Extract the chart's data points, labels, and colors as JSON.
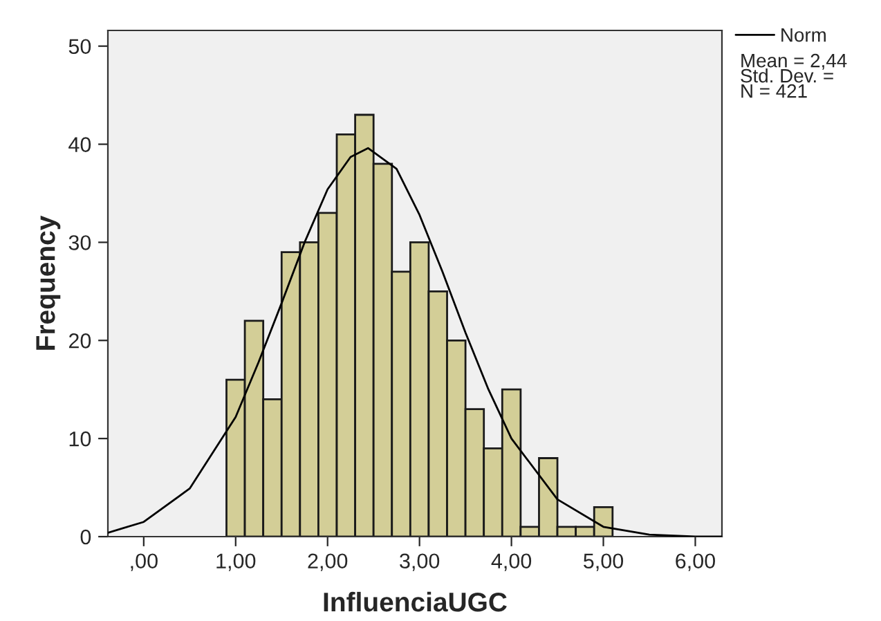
{
  "chart_data": {
    "type": "histogram",
    "xlabel": "InfluenciaUGC",
    "ylabel": "Frequency",
    "bins": [
      0.9,
      1.1,
      1.3,
      1.5,
      1.7,
      1.9,
      2.1,
      2.3,
      2.5,
      2.7,
      2.9,
      3.1,
      3.3,
      3.5,
      3.7,
      3.9,
      4.1,
      4.3,
      4.5,
      4.7,
      4.9,
      5.1
    ],
    "values": [
      16,
      22,
      14,
      29,
      30,
      33,
      41,
      43,
      38,
      27,
      30,
      25,
      20,
      13,
      9,
      15,
      1,
      8,
      1,
      1,
      3
    ],
    "color": "#d3ce97",
    "series": [
      {
        "name": "Norm",
        "type": "line",
        "color": "#000000",
        "x": [
          -0.39,
          0,
          0.5,
          1.0,
          1.25,
          1.5,
          1.75,
          2.0,
          2.25,
          2.44,
          2.75,
          3.0,
          3.25,
          3.5,
          3.75,
          4.0,
          4.5,
          5.0,
          5.5,
          6.0,
          6.29
        ],
        "values": [
          0.4,
          1.5,
          4.9,
          12.2,
          17.8,
          23.8,
          30.0,
          35.4,
          38.7,
          39.6,
          37.5,
          32.8,
          27.0,
          20.8,
          15.0,
          10.0,
          3.8,
          1.0,
          0.2,
          0.0,
          0.0
        ]
      }
    ],
    "annotations": [
      "Mean = 2,44",
      "Std. Dev. =",
      "N = 421"
    ],
    "xlim": [
      -0.39,
      6.29
    ],
    "ylim": [
      0,
      51.6
    ],
    "xticks": [
      {
        "value": 0,
        "label": ",00"
      },
      {
        "value": 1,
        "label": "1,00"
      },
      {
        "value": 2,
        "label": "2,00"
      },
      {
        "value": 3,
        "label": "3,00"
      },
      {
        "value": 4,
        "label": "4,00"
      },
      {
        "value": 5,
        "label": "5,00"
      },
      {
        "value": 6,
        "label": "6,00"
      }
    ],
    "yticks": [
      0,
      10,
      20,
      30,
      40,
      50
    ],
    "grid": false,
    "legend": "top right"
  }
}
